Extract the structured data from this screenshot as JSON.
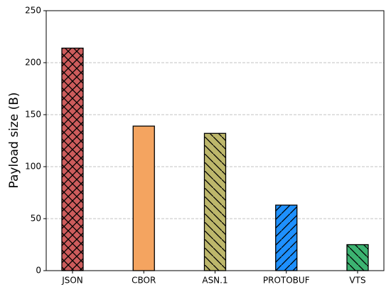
{
  "chart_data": {
    "type": "bar",
    "y_label": "Payload size (B)",
    "categories": [
      "JSON",
      "CBOR",
      "ASN.1",
      "PROTOBUF",
      "VTS"
    ],
    "values": [
      214,
      139,
      132,
      63,
      25
    ],
    "colors": [
      "#cd5c5c",
      "#f4a460",
      "#bdb76b",
      "#1e90ff",
      "#3cb371"
    ],
    "hatches": [
      "x",
      "",
      "\\",
      "/",
      "\\"
    ],
    "ylim": [
      0,
      250
    ],
    "yticks": [
      0,
      50,
      100,
      150,
      200,
      250
    ],
    "grid": true
  }
}
